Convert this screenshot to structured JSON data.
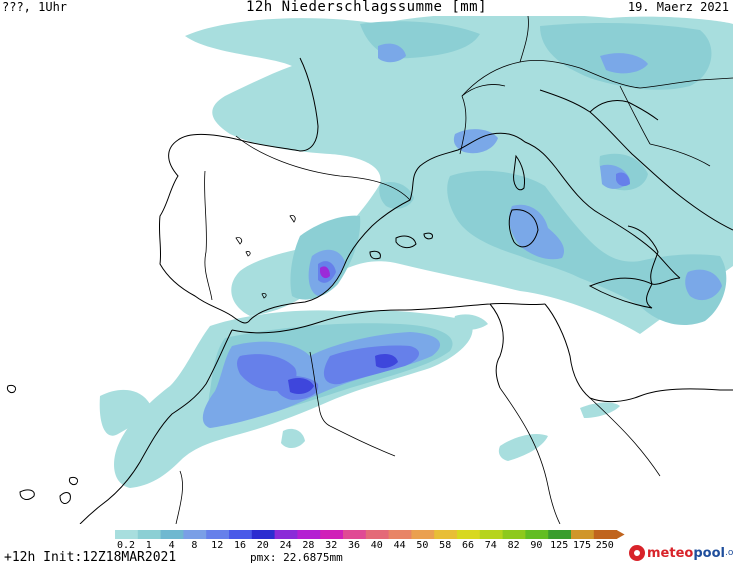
{
  "header": {
    "location_time": "???, 1Uhr",
    "title": "12h Niederschlagssumme [mm]",
    "date": "19. Maerz 2021"
  },
  "legend": {
    "levels": [
      "0.2",
      "1",
      "4",
      "8",
      "12",
      "16",
      "20",
      "24",
      "28",
      "32",
      "36",
      "40",
      "44",
      "50",
      "58",
      "66",
      "74",
      "82",
      "90",
      "125",
      "175",
      "250"
    ],
    "colors": [
      "#a8dede",
      "#8ccfd4",
      "#6fb8d0",
      "#7a9fe6",
      "#6680ea",
      "#4a5ae8",
      "#2c2cd0",
      "#8a2bd8",
      "#b41fd2",
      "#d020b8",
      "#e04a94",
      "#e46a78",
      "#e88466",
      "#eaa050",
      "#e8be36",
      "#d8d820",
      "#b6d41c",
      "#8ec91c",
      "#62bd22",
      "#3a9d2e",
      "#d0962a",
      "#c0641e"
    ]
  },
  "footer": {
    "init": "+12h Init:12Z18MAR2021",
    "pmx": "pmx: 22.6875mm"
  },
  "logo": {
    "meteo": "meteo",
    "pool": "pool",
    "tld": ".org"
  },
  "map_colors": {
    "c1": "#a8dede",
    "c2": "#8ccfd4",
    "c3": "#7aa8e8",
    "c4": "#6680ea",
    "c5": "#3e46dc",
    "c6": "#9b2bd8",
    "border": "#000000"
  }
}
